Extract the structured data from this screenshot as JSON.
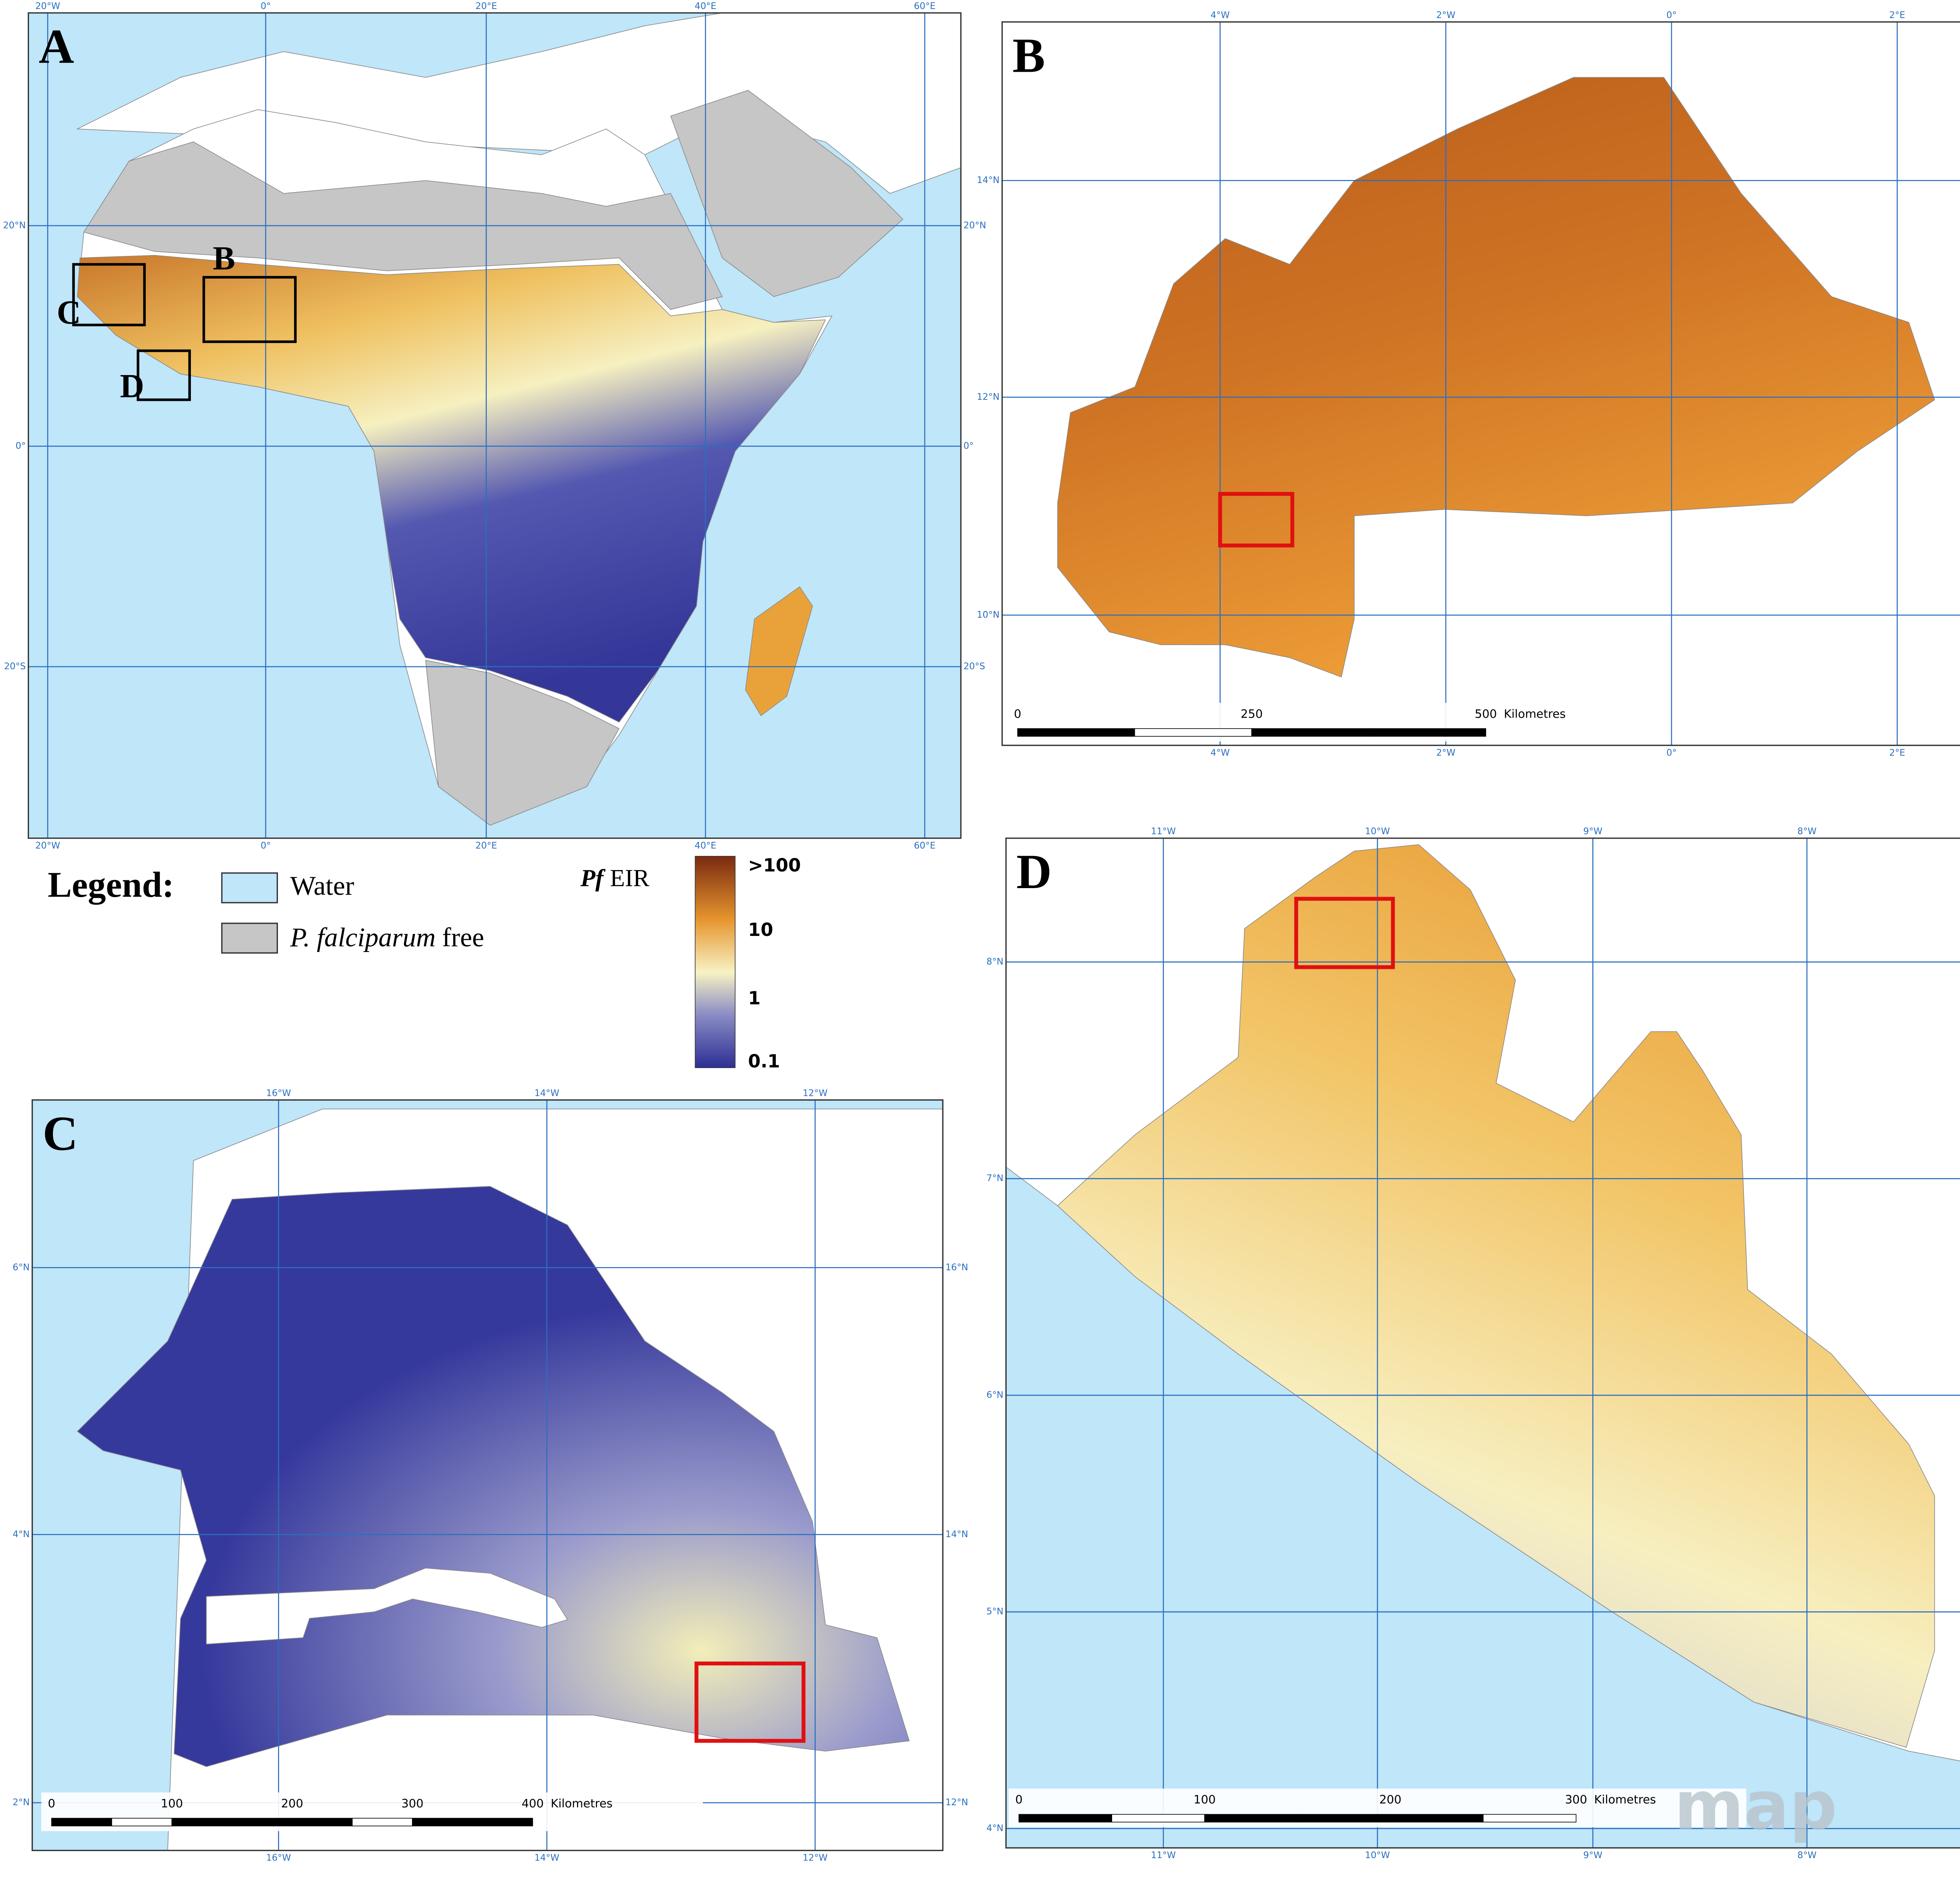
{
  "panels": [
    {
      "label": "A",
      "lon_labels": [
        "20°W",
        "0°",
        "20°E",
        "40°E",
        "60°E"
      ],
      "lat_labels": [
        "20°N",
        "0°",
        "20°S"
      ],
      "inset_labels": [
        "B",
        "C",
        "D"
      ]
    },
    {
      "label": "B",
      "lon_labels": [
        "4°W",
        "2°W",
        "0°",
        "2°E"
      ],
      "lat_labels": [
        "14°N",
        "12°N",
        "10°N"
      ],
      "scale_labels": [
        "0",
        "250",
        "500"
      ],
      "scale_unit": "Kilometres"
    },
    {
      "label": "C",
      "lon_labels": [
        "16°W",
        "14°W",
        "12°W"
      ],
      "lat_labels": [
        "6°N",
        "4°N",
        "2°N"
      ],
      "lat_labels_right": [
        "16°N",
        "14°N",
        "12°N"
      ],
      "scale_labels": [
        "0",
        "100",
        "200",
        "300",
        "400"
      ],
      "scale_unit": "Kilometres"
    },
    {
      "label": "D",
      "lon_labels": [
        "11°W",
        "10°W",
        "9°W",
        "8°W"
      ],
      "lat_labels": [
        "8°N",
        "7°N",
        "6°N",
        "5°N",
        "4°N"
      ],
      "scale_labels": [
        "0",
        "100",
        "200",
        "300"
      ],
      "scale_unit": "Kilometres"
    }
  ],
  "legend": {
    "title": "Legend:",
    "water": "Water",
    "free_italic": "P. falciparum",
    "free_rest": "free",
    "colorbar_italic": "Pf",
    "colorbar_rest": "EIR",
    "colorbar_labels": [
      ">100",
      "10",
      "1",
      "0.1"
    ]
  },
  "logo": "map"
}
